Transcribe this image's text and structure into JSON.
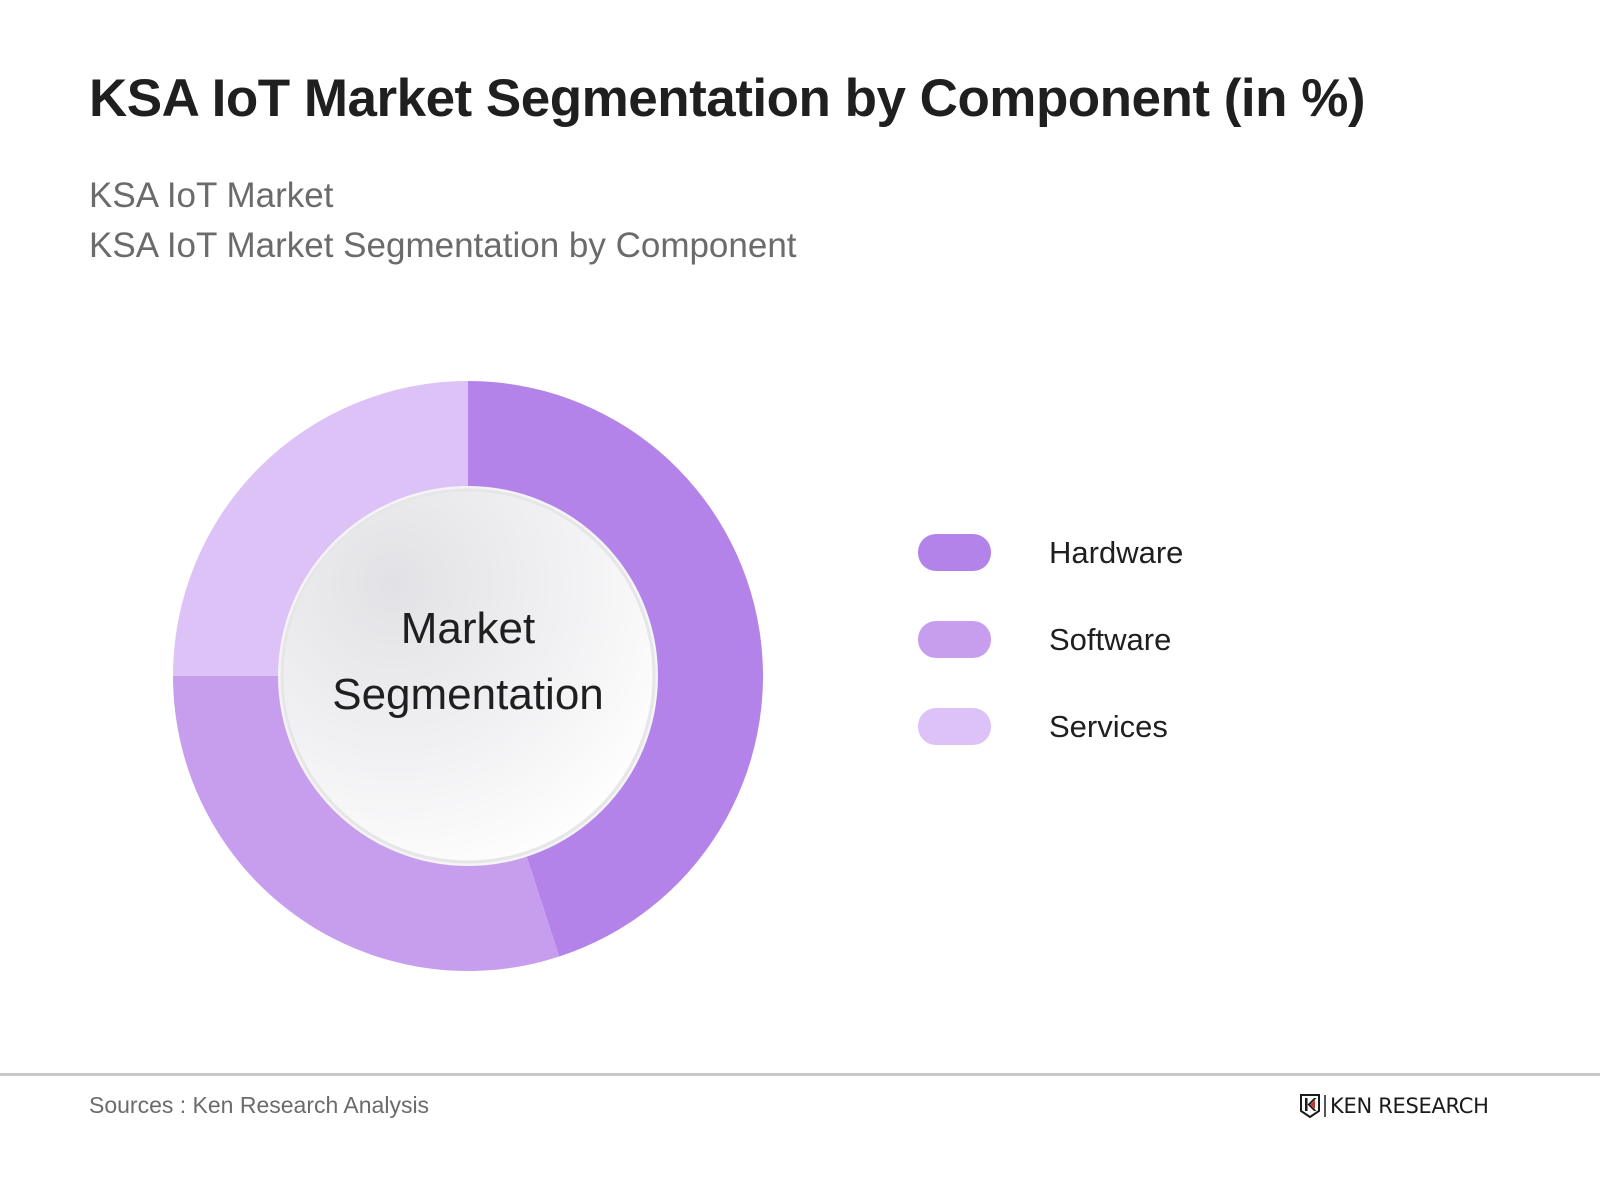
{
  "header": {
    "title": "KSA IoT Market Segmentation by Component (in %)",
    "subtitle_line1": "KSA IoT Market",
    "subtitle_line2": "KSA IoT Market Segmentation by Component"
  },
  "center_label": {
    "line1": "Market",
    "line2": "Segmentation"
  },
  "legend": {
    "items": [
      {
        "label": "Hardware",
        "color": "#b383e9"
      },
      {
        "label": "Software",
        "color": "#c79eee"
      },
      {
        "label": "Services",
        "color": "#dcc2f6"
      }
    ]
  },
  "footer": {
    "source": "Sources : Ken Research Analysis",
    "logo_text": "KEN RESEARCH"
  },
  "chart_data": {
    "type": "pie",
    "variant": "donut",
    "title": "KSA IoT Market Segmentation by Component (in %)",
    "subtitle": [
      "KSA IoT Market",
      "KSA IoT Market Segmentation by Component"
    ],
    "center_text": "Market Segmentation",
    "categories": [
      "Hardware",
      "Software",
      "Services"
    ],
    "values": [
      45,
      30,
      25
    ],
    "colors": [
      "#b383e9",
      "#c79eee",
      "#dcc2f6"
    ],
    "start_angle": "12 o'clock, clockwise",
    "data_labels": false,
    "legend_position": "right",
    "source": "Sources : Ken Research Analysis"
  }
}
